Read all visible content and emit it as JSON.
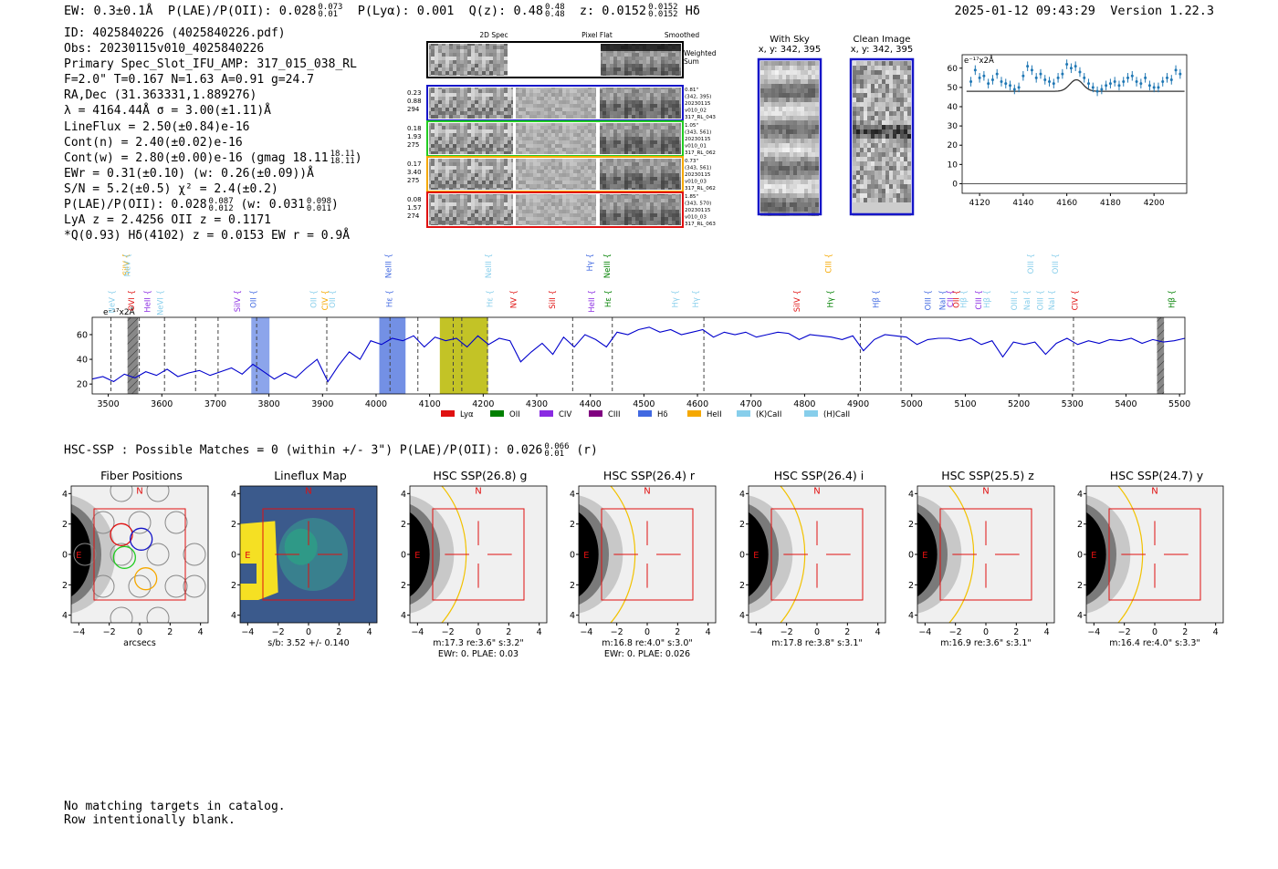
{
  "header": {
    "ew_label": "EW: 0.3±0.1Å",
    "plae_label": "P(LAE)/P(OII): 0.028",
    "plae_hi": "0.073",
    "plae_lo": "0.01",
    "plya": "P(Lyα): 0.001",
    "qz_label": "Q(z): 0.48",
    "qz_hi": "0.48",
    "qz_lo": "0.48",
    "z_label": "z: 0.0152",
    "z_hi": "0.0152",
    "z_lo": "0.0152",
    "line_name": "Hδ",
    "datetime": "2025-01-12 09:43:29",
    "version": "Version 1.22.3"
  },
  "info": {
    "id": "ID: 4025840226 (4025840226.pdf)",
    "obs": "Obs: 20230115v010_4025840226",
    "primary": "Primary Spec_Slot_IFU_AMP: 317_015_038_RL",
    "params": "F=2.0\"  T=0.167  N=1.63  A=0.91  g=24.7",
    "radec": "RA,Dec (31.363331,1.889276)",
    "lambda": "λ = 4164.44Å  σ = 3.00(±1.11)Å",
    "lineflux": "LineFlux = 2.50(±0.84)e-16",
    "contn": "Cont(n) = 2.40(±0.02)e-16",
    "contw": "Cont(w) = 2.80(±0.00)e-16 (gmag 18.11",
    "contw_hi": "18.11",
    "contw_lo": "18.11",
    "contw_end": ")",
    "ewr": "EWr = 0.31(±0.10) (w: 0.26(±0.09))Å",
    "sn": "S/N = 5.2(±0.5)  χ² = 2.4(±0.2)",
    "plae": "P(LAE)/P(OII): 0.028",
    "plae_hi": "0.087",
    "plae_lo": "0.012",
    "plae_w": "(w: 0.031",
    "plae_w_hi": "0.098",
    "plae_w_lo": "0.011",
    "plae_w_end": ")",
    "lya": "LyA z = 2.4256  OII z = 0.1171",
    "q": "*Q(0.93) Hδ(4102) z = 0.0153  EW r = 0.9Å"
  },
  "cutouts": {
    "col_labels": [
      "2D Spec",
      "Pixel Flat",
      "Smoothed"
    ],
    "weighted_sum": "Weighted Sum",
    "rows": [
      {
        "color": "#1515c8",
        "left": [
          "0.23",
          "0.88",
          "294"
        ],
        "right": [
          "0.81\"",
          "(342, 395)",
          "20230115",
          "v010_02",
          "317_RL_043"
        ]
      },
      {
        "color": "#22cc22",
        "left": [
          "0.18",
          "1.93",
          "275"
        ],
        "right": [
          "1.05\"",
          "(343, 561)",
          "20230115",
          "v010_01",
          "317_RL_062"
        ]
      },
      {
        "color": "#f5a800",
        "left": [
          "0.17",
          "3.40",
          "275"
        ],
        "right": [
          "0.73\"",
          "(343, 561)",
          "20230115",
          "v010_03",
          "317_RL_062"
        ]
      },
      {
        "color": "#e01010",
        "left": [
          "0.08",
          "1.57",
          "274"
        ],
        "right": [
          "1.85\"",
          "(343, 570)",
          "20230115",
          "v010_03",
          "317_RL_063"
        ]
      }
    ]
  },
  "sky": {
    "with_sky": "With Sky",
    "clean": "Clean Image",
    "xy": "x, y: 342, 395"
  },
  "zoom_chart": {
    "scale_label": "e⁻¹⁷x2Å",
    "xlim": [
      4112,
      4215
    ],
    "ylim": [
      -5,
      67
    ],
    "xticks": [
      4120,
      4140,
      4160,
      4180,
      4200
    ],
    "yticks": [
      0,
      10,
      20,
      30,
      40,
      50,
      60
    ],
    "x": [
      4116,
      4118,
      4120,
      4122,
      4124,
      4126,
      4128,
      4130,
      4132,
      4134,
      4136,
      4138,
      4140,
      4142,
      4144,
      4146,
      4148,
      4150,
      4152,
      4154,
      4156,
      4158,
      4160,
      4162,
      4164,
      4166,
      4168,
      4170,
      4172,
      4174,
      4176,
      4178,
      4180,
      4182,
      4184,
      4186,
      4188,
      4190,
      4192,
      4194,
      4196,
      4198,
      4200,
      4202,
      4204,
      4206,
      4208,
      4210,
      4212
    ],
    "y": [
      53,
      59,
      55,
      56,
      52,
      54,
      57,
      53,
      52,
      51,
      49,
      50,
      56,
      61,
      59,
      55,
      57,
      54,
      53,
      52,
      55,
      57,
      62,
      60,
      61,
      58,
      55,
      52,
      50,
      48,
      49,
      51,
      52,
      53,
      51,
      53,
      55,
      56,
      53,
      52,
      55,
      51,
      50,
      50,
      53,
      55,
      54,
      59,
      57
    ],
    "fit_base": 48,
    "fit_peak": 6,
    "fit_center": 4164.4,
    "fit_sigma": 3.0
  },
  "chart_data": {
    "type": "line",
    "title": "",
    "xlabel": "",
    "ylabel": "",
    "scale_label": "e⁻¹⁷x2Å",
    "xlim": [
      3470,
      5510
    ],
    "ylim": [
      12,
      74
    ],
    "xticks": [
      3500,
      3600,
      3700,
      3800,
      3900,
      4000,
      4100,
      4200,
      4300,
      4400,
      4500,
      4600,
      4700,
      4800,
      4900,
      5000,
      5100,
      5200,
      5300,
      5400,
      5500
    ],
    "yticks": [
      20,
      40,
      60
    ],
    "x": [
      3470,
      3490,
      3510,
      3530,
      3550,
      3570,
      3590,
      3610,
      3630,
      3650,
      3670,
      3690,
      3710,
      3730,
      3750,
      3770,
      3790,
      3810,
      3830,
      3850,
      3870,
      3890,
      3910,
      3930,
      3950,
      3970,
      3990,
      4010,
      4030,
      4050,
      4070,
      4090,
      4110,
      4130,
      4150,
      4170,
      4190,
      4210,
      4230,
      4250,
      4270,
      4290,
      4310,
      4330,
      4350,
      4370,
      4390,
      4410,
      4430,
      4450,
      4470,
      4490,
      4510,
      4530,
      4550,
      4570,
      4590,
      4610,
      4630,
      4650,
      4670,
      4690,
      4710,
      4730,
      4750,
      4770,
      4790,
      4810,
      4830,
      4850,
      4870,
      4890,
      4910,
      4930,
      4950,
      4970,
      4990,
      5010,
      5030,
      5050,
      5070,
      5090,
      5110,
      5130,
      5150,
      5170,
      5190,
      5210,
      5230,
      5250,
      5270,
      5290,
      5310,
      5330,
      5350,
      5370,
      5390,
      5410,
      5430,
      5450,
      5470,
      5490,
      5510
    ],
    "y": [
      24,
      26,
      22,
      28,
      25,
      30,
      27,
      32,
      26,
      29,
      31,
      27,
      30,
      33,
      28,
      36,
      30,
      24,
      29,
      25,
      33,
      40,
      22,
      35,
      46,
      40,
      55,
      52,
      57,
      55,
      59,
      50,
      58,
      55,
      57,
      50,
      59,
      52,
      57,
      55,
      38,
      46,
      53,
      44,
      58,
      50,
      60,
      56,
      50,
      62,
      60,
      64,
      66,
      62,
      64,
      60,
      62,
      64,
      58,
      62,
      60,
      62,
      58,
      60,
      62,
      61,
      56,
      60,
      59,
      58,
      56,
      59,
      47,
      56,
      60,
      59,
      58,
      52,
      56,
      57,
      57,
      55,
      57,
      52,
      55,
      42,
      54,
      52,
      54,
      44,
      53,
      57,
      52,
      55,
      53,
      56,
      55,
      57,
      53,
      56,
      54,
      55,
      57
    ],
    "dashed_lines": [
      3505,
      3558,
      3605,
      3663,
      3705,
      3777,
      3908,
      4026,
      4078,
      4144,
      4160,
      4208,
      4367,
      4441,
      4612,
      4904,
      4980,
      5302
    ],
    "shaded": [
      {
        "from": 3536,
        "to": 3556,
        "color": "#888888",
        "hatch": true
      },
      {
        "from": 3767,
        "to": 3801,
        "color": "#7895e8"
      },
      {
        "from": 4006,
        "to": 4055,
        "color": "#5a7de0"
      },
      {
        "from": 4119,
        "to": 4209,
        "color": "#b8b800"
      },
      {
        "from": 5458,
        "to": 5471,
        "color": "#888888",
        "hatch": true
      }
    ],
    "top_labels": [
      {
        "text": "SiIV",
        "x": 3538,
        "color": "#f5a800"
      },
      {
        "text": "NeV",
        "x": 3541,
        "color": "#87ceeb"
      },
      {
        "text": "NeIII",
        "x": 4028,
        "color": "#4169e1"
      },
      {
        "text": "NeIII",
        "x": 4215,
        "color": "#87ceeb"
      },
      {
        "text": "Hγ",
        "x": 4404,
        "color": "#4169e1"
      },
      {
        "text": "NeIII",
        "x": 4436,
        "color": "#008000"
      },
      {
        "text": "CIII",
        "x": 4850,
        "color": "#f5a800"
      },
      {
        "text": "OIII",
        "x": 5227,
        "color": "#87ceeb"
      },
      {
        "text": "OIII",
        "x": 5273,
        "color": "#87ceeb"
      }
    ],
    "low_labels": [
      {
        "text": "NeV",
        "x": 3512,
        "color": "#87ceeb"
      },
      {
        "text": "OVI",
        "x": 3548,
        "color": "#e01010"
      },
      {
        "text": "HeII",
        "x": 3578,
        "color": "#8a2be2"
      },
      {
        "text": "NeVI",
        "x": 3602,
        "color": "#87ceeb"
      },
      {
        "text": "SiIV",
        "x": 3746,
        "color": "#8a2be2"
      },
      {
        "text": "OII",
        "x": 3776,
        "color": "#4169e1"
      },
      {
        "text": "OII",
        "x": 3888,
        "color": "#87ceeb"
      },
      {
        "text": "CIV",
        "x": 3910,
        "color": "#f5a800"
      },
      {
        "text": "OII",
        "x": 3923,
        "color": "#87ceeb"
      },
      {
        "text": "Hε",
        "x": 4030,
        "color": "#4169e1"
      },
      {
        "text": "Hε",
        "x": 4217,
        "color": "#87ceeb"
      },
      {
        "text": "NV",
        "x": 4262,
        "color": "#e01010"
      },
      {
        "text": "SiII",
        "x": 4334,
        "color": "#e01010"
      },
      {
        "text": "HeII",
        "x": 4407,
        "color": "#8a2be2"
      },
      {
        "text": "Hε",
        "x": 4438,
        "color": "#008000"
      },
      {
        "text": "Hγ",
        "x": 4563,
        "color": "#87ceeb"
      },
      {
        "text": "Hγ",
        "x": 4602,
        "color": "#87ceeb"
      },
      {
        "text": "SiIV",
        "x": 4791,
        "color": "#e01010"
      },
      {
        "text": "Hγ",
        "x": 4853,
        "color": "#008000"
      },
      {
        "text": "Hβ",
        "x": 4938,
        "color": "#4169e1"
      },
      {
        "text": "OIII",
        "x": 5035,
        "color": "#4169e1"
      },
      {
        "text": "NaI",
        "x": 5063,
        "color": "#4169e1"
      },
      {
        "text": "CII",
        "x": 5077,
        "color": "#8a2be2"
      },
      {
        "text": "OII",
        "x": 5088,
        "color": "#e01010"
      },
      {
        "text": "Hβ",
        "x": 5102,
        "color": "#87ceeb"
      },
      {
        "text": "CIII",
        "x": 5130,
        "color": "#8a2be2"
      },
      {
        "text": "Hβ",
        "x": 5145,
        "color": "#87ceeb"
      },
      {
        "text": "OIII",
        "x": 5196,
        "color": "#87ceeb"
      },
      {
        "text": "NaI",
        "x": 5220,
        "color": "#87ceeb"
      },
      {
        "text": "OIII",
        "x": 5245,
        "color": "#87ceeb"
      },
      {
        "text": "NaI",
        "x": 5266,
        "color": "#87ceeb"
      },
      {
        "text": "CIV",
        "x": 5310,
        "color": "#e01010"
      },
      {
        "text": "Hβ",
        "x": 5490,
        "color": "#008000"
      }
    ],
    "legend": [
      {
        "label": "Lyα",
        "color": "#e01010"
      },
      {
        "label": "OII",
        "color": "#008000"
      },
      {
        "label": "CIV",
        "color": "#8a2be2"
      },
      {
        "label": "CIII",
        "color": "#800080"
      },
      {
        "label": "Hδ",
        "color": "#4169e1"
      },
      {
        "label": "HeII",
        "color": "#f5a800"
      },
      {
        "label": "(K)CaII",
        "color": "#87ceeb"
      },
      {
        "label": "(H)CaII",
        "color": "#87ceeb"
      }
    ]
  },
  "hsc": {
    "title_prefix": "HSC-SSP : Possible Matches = 0 (within +/- 3\")  P(LAE)/P(OII): 0.026",
    "title_hi": "0.066",
    "title_lo": "0.01",
    "title_suffix": "(r)",
    "ticks": [
      "−4",
      "−2",
      "0",
      "2",
      "4"
    ],
    "north": "N",
    "east": "E",
    "panels": [
      {
        "title": "Fiber Positions",
        "caption": [
          "arcsecs"
        ],
        "kind": "fiber"
      },
      {
        "title": "Lineflux Map",
        "caption": [
          "s/b: 3.52 +/- 0.140"
        ],
        "kind": "flux"
      },
      {
        "title": "HSC SSP(26.8) g",
        "caption": [
          "m:17.3  re:3.6\"  s:3.2\"",
          "EWr: 0, PLAE: 0.03"
        ],
        "kind": "hsc"
      },
      {
        "title": "HSC SSP(26.4) r",
        "caption": [
          "m:16.8  re:4.0\"  s:3.0\"",
          "EWr: 0, PLAE: 0.026"
        ],
        "kind": "hsc"
      },
      {
        "title": "HSC SSP(26.4) i",
        "caption": [
          "m:17.8  re:3.8\"  s:3.1\""
        ],
        "kind": "hsc"
      },
      {
        "title": "HSC SSP(25.5) z",
        "caption": [
          "m:16.9  re:3.6\"  s:3.1\""
        ],
        "kind": "hsc"
      },
      {
        "title": "HSC SSP(24.7) y",
        "caption": [
          "m:16.4  re:4.0\"  s:3.3\""
        ],
        "kind": "hsc"
      }
    ]
  },
  "footer": {
    "line1": "No matching targets in catalog.",
    "line2": "Row intentionally blank."
  },
  "colors": {
    "spectrum": "#0000cc",
    "points": "#1f77b4",
    "fit": "#333333",
    "frame_red": "#e01010",
    "ellipse": "#f2c200"
  }
}
